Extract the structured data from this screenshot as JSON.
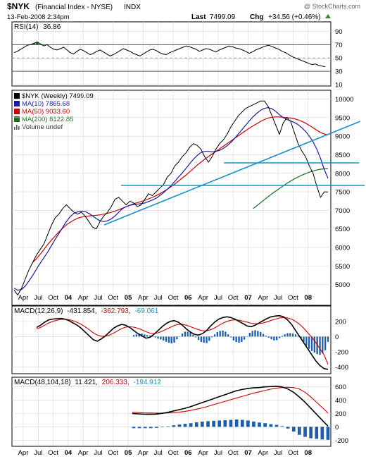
{
  "header": {
    "symbol": "$NYK",
    "name": "(Financial Index - NYSE)",
    "exchange": "INDX",
    "watermark": "@ StockCharts.com",
    "date": "13-Feb-2008 2:34pm",
    "last_label": "Last",
    "last": "7499.09",
    "chg_label": "Chg",
    "chg": "+34.56 (+0.46%)",
    "chg_arrow": "up-triangle-icon"
  },
  "colors": {
    "price": "#000000",
    "ma10": "#1a1aa8",
    "ma50": "#d00000",
    "ma200": "#1e6b1e",
    "trend": "#1a8fc8",
    "rsi_fill": "#2d6b2d",
    "signal": "#d00000",
    "hist": "#1a5fb0",
    "grid": "#d8d8d8",
    "neg": "#1a8fc8"
  },
  "x_axis_labels": [
    "Apr",
    "Jul",
    "Oct",
    "04",
    "Apr",
    "Jul",
    "Oct",
    "05",
    "Apr",
    "Jul",
    "Oct",
    "06",
    "Apr",
    "Jul",
    "Oct",
    "07",
    "Apr",
    "Jul",
    "Oct",
    "08"
  ],
  "chart_data": [
    {
      "type": "line",
      "title": "RSI(14) 36.86",
      "label_name": "RSI(14)",
      "label_value": "36.86",
      "ylim": [
        10,
        100
      ],
      "yticks": [
        90,
        70,
        50,
        30,
        10
      ],
      "reference_lines": [
        70,
        50,
        30
      ],
      "values": [
        58,
        60,
        63,
        66,
        69,
        70,
        72,
        74,
        71,
        68,
        70,
        66,
        63,
        62,
        64,
        66,
        62,
        58,
        56,
        60,
        63,
        61,
        58,
        55,
        57,
        60,
        62,
        59,
        56,
        53,
        55,
        58,
        61,
        64,
        62,
        60,
        57,
        55,
        53,
        56,
        59,
        62,
        63,
        61,
        58,
        56,
        55,
        58,
        60,
        62,
        64,
        66,
        68,
        67,
        65,
        63,
        60,
        62,
        64,
        63,
        61,
        59,
        62,
        64,
        66,
        68,
        67,
        65,
        64,
        62,
        60,
        57,
        59,
        62,
        64,
        66,
        68,
        69,
        67,
        65,
        63,
        60,
        58,
        55,
        52,
        50,
        48,
        46,
        44,
        42,
        40,
        41,
        39,
        38,
        36.86
      ]
    },
    {
      "type": "line",
      "title": "$NYK (Weekly) 7499.09",
      "ylim": [
        4500,
        10200
      ],
      "yticks": [
        10000,
        9500,
        9000,
        8500,
        8000,
        7500,
        7000,
        6500,
        6000,
        5500,
        5000
      ],
      "legend": [
        {
          "label": "$NYK (Weekly) 7499.09",
          "color": "#000000"
        },
        {
          "label": "MA(10) 7865.68",
          "color": "#1a1aa8"
        },
        {
          "label": "MA(50) 9033.60",
          "color": "#d00000"
        },
        {
          "label": "MA(200) 8122.85",
          "color": "#1e6b1e"
        },
        {
          "label": "Volume undef",
          "color": "#000000"
        }
      ],
      "series": [
        {
          "name": "$NYK (Weekly)",
          "values": [
            4850,
            4720,
            4900,
            5150,
            5400,
            5600,
            5800,
            5950,
            6100,
            6350,
            6600,
            6800,
            6900,
            7050,
            7150,
            7050,
            6950,
            6900,
            6950,
            6850,
            6700,
            6550,
            6500,
            6700,
            6850,
            6950,
            7100,
            7300,
            7350,
            7250,
            7150,
            7250,
            7200,
            7100,
            7150,
            7300,
            7450,
            7400,
            7500,
            7600,
            7700,
            7900,
            8000,
            8200,
            8300,
            8450,
            8550,
            8700,
            8800,
            8750,
            8650,
            8450,
            8300,
            8450,
            8650,
            8800,
            8900,
            9050,
            9250,
            9400,
            9550,
            9650,
            9750,
            9800,
            9850,
            9900,
            9950,
            9950,
            9800,
            9550,
            9300,
            9050,
            9350,
            9500,
            9400,
            9100,
            8800,
            8600,
            8450,
            8200,
            8000,
            7650,
            7350,
            7500,
            7499
          ]
        },
        {
          "name": "MA(10)",
          "values": [
            4900,
            4850,
            4870,
            4960,
            5100,
            5250,
            5420,
            5580,
            5730,
            5880,
            6050,
            6220,
            6380,
            6540,
            6700,
            6830,
            6920,
            6960,
            6980,
            6970,
            6920,
            6850,
            6780,
            6720,
            6700,
            6720,
            6770,
            6850,
            6950,
            7050,
            7100,
            7140,
            7160,
            7170,
            7180,
            7200,
            7240,
            7280,
            7330,
            7400,
            7480,
            7570,
            7670,
            7780,
            7900,
            8010,
            8130,
            8260,
            8380,
            8480,
            8560,
            8590,
            8590,
            8580,
            8590,
            8620,
            8670,
            8740,
            8830,
            8940,
            9060,
            9180,
            9300,
            9420,
            9530,
            9620,
            9700,
            9750,
            9770,
            9740,
            9670,
            9580,
            9500,
            9450,
            9410,
            9370,
            9310,
            9230,
            9130,
            9000,
            8850,
            8650,
            8400,
            8100,
            7866
          ]
        },
        {
          "name": "MA(50)",
          "values": [
            null,
            null,
            null,
            null,
            null,
            5600,
            5700,
            5820,
            5950,
            6080,
            6200,
            6310,
            6420,
            6520,
            6610,
            6680,
            6740,
            6790,
            6820,
            6840,
            6850,
            6860,
            6870,
            6880,
            6900,
            6920,
            6950,
            6980,
            7020,
            7060,
            7100,
            7140,
            7180,
            7210,
            7240,
            7270,
            7310,
            7350,
            7400,
            7450,
            7510,
            7570,
            7640,
            7710,
            7790,
            7870,
            7950,
            8040,
            8130,
            8220,
            8300,
            8380,
            8450,
            8520,
            8590,
            8660,
            8730,
            8800,
            8870,
            8940,
            9010,
            9080,
            9150,
            9220,
            9280,
            9340,
            9400,
            9450,
            9490,
            9510,
            9520,
            9520,
            9510,
            9500,
            9490,
            9470,
            9440,
            9400,
            9350,
            9290,
            9230,
            9160,
            9100,
            9060,
            9034
          ]
        },
        {
          "name": "MA(200)",
          "values": [
            null,
            null,
            null,
            null,
            null,
            null,
            null,
            null,
            null,
            null,
            null,
            null,
            null,
            null,
            null,
            null,
            null,
            null,
            null,
            null,
            null,
            null,
            null,
            null,
            null,
            null,
            null,
            null,
            null,
            null,
            null,
            null,
            null,
            null,
            null,
            null,
            null,
            null,
            null,
            null,
            null,
            null,
            null,
            null,
            null,
            null,
            null,
            null,
            null,
            null,
            null,
            null,
            null,
            null,
            null,
            null,
            null,
            null,
            null,
            null,
            null,
            null,
            null,
            null,
            7050,
            7130,
            7210,
            7290,
            7370,
            7450,
            7520,
            7590,
            7660,
            7730,
            7790,
            7850,
            7900,
            7950,
            7990,
            8030,
            8060,
            8090,
            8110,
            8120,
            8123
          ]
        }
      ]
    },
    {
      "type": "line",
      "title": "MACD(12,26,9) -431.854, -362.793, -69.061",
      "label_name": "MACD(12,26,9)",
      "label_macd": "-431.854",
      "label_signal": "-362.793",
      "label_hist": "-69.061",
      "ylim": [
        -450,
        300
      ],
      "yticks": [
        200,
        0,
        -200,
        -400
      ],
      "series": [
        {
          "name": "MACD",
          "values": [
            120,
            150,
            190,
            220,
            230,
            235,
            240,
            230,
            210,
            180,
            150,
            110,
            60,
            10,
            -40,
            -60,
            -30,
            10,
            60,
            110,
            140,
            160,
            150,
            120,
            80,
            40,
            10,
            -20,
            -10,
            30,
            80,
            130,
            170,
            200,
            210,
            190,
            150,
            100,
            60,
            30,
            20,
            40,
            80,
            140,
            190,
            230,
            250,
            260,
            250,
            230,
            200,
            170,
            140,
            130,
            150,
            180,
            210,
            240,
            260,
            270,
            275,
            260,
            220,
            160,
            80,
            0,
            -80,
            -160,
            -240,
            -320,
            -380,
            -420,
            -431
          ]
        },
        {
          "name": "Signal",
          "values": [
            100,
            120,
            150,
            180,
            200,
            215,
            225,
            228,
            222,
            208,
            188,
            162,
            128,
            90,
            50,
            20,
            5,
            5,
            20,
            45,
            75,
            105,
            125,
            130,
            124,
            110,
            90,
            65,
            45,
            40,
            50,
            70,
            95,
            120,
            145,
            160,
            160,
            150,
            130,
            110,
            90,
            78,
            75,
            90,
            115,
            145,
            175,
            200,
            215,
            220,
            215,
            205,
            190,
            175,
            170,
            170,
            180,
            195,
            215,
            230,
            245,
            250,
            245,
            230,
            200,
            160,
            110,
            50,
            -10,
            -80,
            -160,
            -240,
            -363
          ]
        }
      ],
      "histogram": [
        20,
        30,
        40,
        40,
        30,
        20,
        15,
        2,
        -12,
        -28,
        -38,
        -52,
        -68,
        -80,
        -90,
        -80,
        -35,
        5,
        40,
        65,
        65,
        55,
        25,
        -10,
        -44,
        -70,
        -80,
        -85,
        -55,
        -10,
        30,
        60,
        75,
        80,
        65,
        30,
        -10,
        -50,
        -70,
        -80,
        -70,
        -38,
        5,
        50,
        75,
        85,
        75,
        60,
        35,
        10,
        -15,
        -35,
        -50,
        -45,
        -20,
        10,
        30,
        45,
        45,
        40,
        30,
        10,
        -25,
        -70,
        -120,
        -160,
        -190,
        -210,
        -230,
        -240,
        -220,
        -180,
        -69
      ]
    },
    {
      "type": "line",
      "title": "MACD(48,104,18) 11.421, 206.333, -194.912",
      "label_name": "MACD(48,104,18)",
      "label_macd": "11.421",
      "label_signal": "206.333",
      "label_hist": "-194.912",
      "ylim": [
        -250,
        650
      ],
      "yticks": [
        600,
        400,
        200,
        0,
        -200
      ],
      "series": [
        {
          "name": "MACD",
          "values": [
            200,
            195,
            190,
            188,
            190,
            200,
            215,
            235,
            255,
            275,
            300,
            330,
            360,
            390,
            420,
            450,
            480,
            510,
            540,
            560,
            575,
            585,
            590,
            600,
            605,
            610,
            600,
            570,
            520,
            450,
            370,
            280,
            190,
            100,
            11
          ]
        },
        {
          "name": "Signal",
          "values": [
            220,
            215,
            210,
            208,
            206,
            206,
            208,
            212,
            220,
            230,
            245,
            262,
            282,
            305,
            330,
            355,
            380,
            405,
            430,
            455,
            480,
            505,
            525,
            545,
            565,
            580,
            590,
            595,
            590,
            570,
            520,
            450,
            370,
            290,
            206
          ]
        }
      ],
      "histogram": [
        -20,
        -20,
        -20,
        -20,
        -16,
        -6,
        7,
        23,
        35,
        45,
        55,
        68,
        78,
        85,
        90,
        95,
        100,
        105,
        110,
        105,
        95,
        80,
        65,
        55,
        40,
        30,
        10,
        -25,
        -70,
        -120,
        -150,
        -170,
        -180,
        -190,
        -195
      ]
    }
  ]
}
